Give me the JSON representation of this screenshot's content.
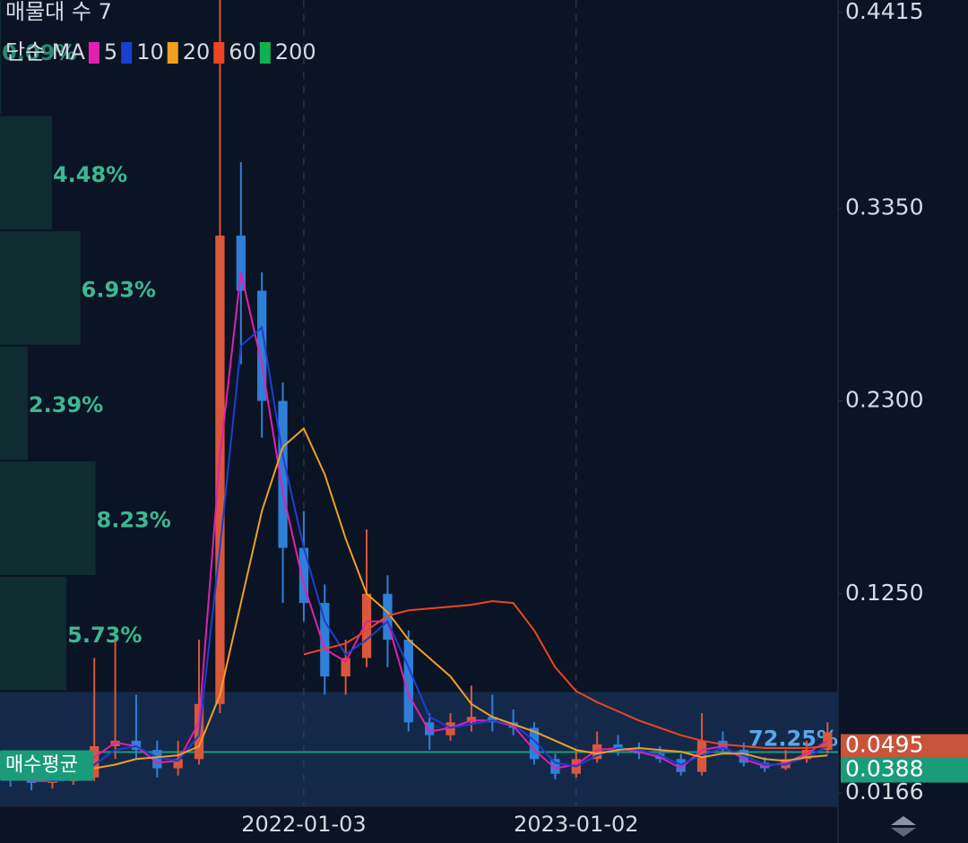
{
  "chart_data": {
    "type": "candlestick",
    "title": "매물대 수 7",
    "legend_title": "단순 MA",
    "categories": [
      null,
      null,
      null,
      null,
      null,
      null,
      null,
      null,
      null,
      null,
      null,
      null,
      null,
      null,
      "2022-01-03",
      null,
      null,
      null,
      null,
      null,
      null,
      null,
      null,
      null,
      null,
      null,
      null,
      "2023-01-02",
      null,
      null,
      null,
      null,
      null,
      null,
      null,
      null,
      null,
      null,
      null,
      null
    ],
    "open": [
      0.026,
      0.024,
      0.022,
      0.023,
      0.025,
      0.042,
      0.045,
      0.04,
      0.03,
      0.035,
      0.065,
      0.32,
      0.29,
      0.23,
      0.15,
      0.12,
      0.08,
      0.09,
      0.125,
      0.1,
      0.055,
      0.048,
      0.055,
      0.058,
      0.055,
      0.052,
      0.035,
      0.027,
      0.035,
      0.043,
      0.04,
      0.038,
      0.035,
      0.028,
      0.045,
      0.04,
      0.033,
      0.03,
      0.035,
      0.04
    ],
    "high": [
      0.03,
      0.027,
      0.026,
      0.03,
      0.09,
      0.1,
      0.07,
      0.045,
      0.045,
      0.1,
      0.4483,
      0.36,
      0.3,
      0.24,
      0.17,
      0.13,
      0.1,
      0.16,
      0.135,
      0.105,
      0.06,
      0.06,
      0.075,
      0.07,
      0.062,
      0.055,
      0.038,
      0.04,
      0.05,
      0.048,
      0.044,
      0.042,
      0.038,
      0.06,
      0.05,
      0.044,
      0.036,
      0.04,
      0.045,
      0.055
    ],
    "low": [
      0.02,
      0.018,
      0.019,
      0.021,
      0.023,
      0.035,
      0.035,
      0.025,
      0.026,
      0.032,
      0.06,
      0.25,
      0.21,
      0.12,
      0.11,
      0.07,
      0.07,
      0.085,
      0.085,
      0.05,
      0.04,
      0.045,
      0.05,
      0.05,
      0.048,
      0.032,
      0.024,
      0.025,
      0.033,
      0.037,
      0.035,
      0.033,
      0.026,
      0.026,
      0.038,
      0.031,
      0.028,
      0.029,
      0.033,
      0.038
    ],
    "close": [
      0.024,
      0.022,
      0.023,
      0.025,
      0.042,
      0.045,
      0.04,
      0.03,
      0.035,
      0.065,
      0.32,
      0.29,
      0.23,
      0.15,
      0.12,
      0.08,
      0.09,
      0.125,
      0.1,
      0.055,
      0.048,
      0.055,
      0.058,
      0.055,
      0.052,
      0.035,
      0.027,
      0.035,
      0.043,
      0.04,
      0.038,
      0.035,
      0.028,
      0.045,
      0.04,
      0.033,
      0.03,
      0.035,
      0.04,
      0.0495
    ],
    "up_color": "#d9573a",
    "down_color": "#2f7fd8",
    "ma": [
      {
        "name": "5",
        "color": "#e020b0",
        "values": [
          0.025,
          0.023,
          0.023,
          0.024,
          0.036,
          0.044,
          0.042,
          0.033,
          0.034,
          0.055,
          0.2,
          0.3,
          0.25,
          0.18,
          0.13,
          0.095,
          0.088,
          0.11,
          0.11,
          0.07,
          0.05,
          0.052,
          0.056,
          0.056,
          0.053,
          0.04,
          0.03,
          0.032,
          0.04,
          0.041,
          0.039,
          0.036,
          0.03,
          0.04,
          0.042,
          0.035,
          0.031,
          0.033,
          0.038,
          0.045
        ]
      },
      {
        "name": "10",
        "color": "#1c3fd0",
        "values": [
          null,
          0.025,
          0.023,
          0.024,
          0.032,
          0.04,
          0.042,
          0.036,
          0.034,
          0.048,
          0.15,
          0.26,
          0.27,
          0.2,
          0.15,
          0.11,
          0.092,
          0.1,
          0.11,
          0.085,
          0.058,
          0.052,
          0.054,
          0.056,
          0.054,
          0.045,
          0.033,
          0.031,
          0.037,
          0.041,
          0.04,
          0.037,
          0.032,
          0.037,
          0.041,
          0.037,
          0.032,
          0.032,
          0.036,
          0.042
        ]
      },
      {
        "name": "20",
        "color": "#f0a020",
        "values": [
          null,
          null,
          null,
          null,
          0.03,
          0.032,
          0.035,
          0.036,
          0.037,
          0.042,
          0.07,
          0.12,
          0.17,
          0.205,
          0.215,
          0.19,
          0.155,
          0.125,
          0.115,
          0.1,
          0.09,
          0.08,
          0.065,
          0.058,
          0.054,
          0.05,
          0.045,
          0.04,
          0.038,
          0.04,
          0.041,
          0.04,
          0.039,
          0.036,
          0.038,
          0.038,
          0.035,
          0.034,
          0.036,
          0.037
        ]
      },
      {
        "name": "60",
        "color": "#ee4422",
        "values": [
          null,
          null,
          null,
          null,
          null,
          null,
          null,
          null,
          null,
          null,
          null,
          null,
          null,
          null,
          0.092,
          0.095,
          0.098,
          0.105,
          0.113,
          0.116,
          0.117,
          0.118,
          0.119,
          0.121,
          0.12,
          0.105,
          0.085,
          0.072,
          0.066,
          0.061,
          0.056,
          0.052,
          0.048,
          0.045,
          0.043,
          0.042,
          0.041,
          0.041,
          0.041,
          0.042
        ]
      },
      {
        "name": "200",
        "color": "#10b050",
        "values": [
          null,
          null,
          null,
          null,
          null,
          null,
          null,
          null,
          null,
          null,
          null,
          null,
          null,
          null,
          null,
          null,
          null,
          null,
          null,
          null,
          null,
          null,
          null,
          null,
          null,
          null,
          null,
          null,
          null,
          null,
          null,
          null,
          null,
          null,
          null,
          null,
          null,
          null,
          null,
          null
        ]
      }
    ],
    "ylim": [
      0.0093,
      0.4483
    ],
    "yticks": [
      0.4415,
      {
        "value": 0.335,
        "label": "0.3350"
      },
      {
        "value": 0.23,
        "label": "0.2300"
      },
      {
        "value": 0.125,
        "label": "0.1250"
      },
      0.0166
    ],
    "last_price": {
      "value": 0.0495,
      "color": "#c8553a"
    },
    "avg_price": {
      "name": "매수평균",
      "value": 0.0388,
      "color": "#1a9c7a"
    },
    "volume_profile": {
      "values": [
        0.09,
        4.48,
        6.93,
        2.39,
        8.23,
        5.73,
        72.25
      ],
      "value_labels": [
        "0.09%",
        "4.48%",
        "6.93%",
        "2.39%",
        "8.23%",
        "5.73%",
        "72.25%"
      ],
      "color": "#0f2d31",
      "last_color": "#14294a",
      "label_color": "#3cb890",
      "last_label_color": "#5aa6e6"
    }
  }
}
